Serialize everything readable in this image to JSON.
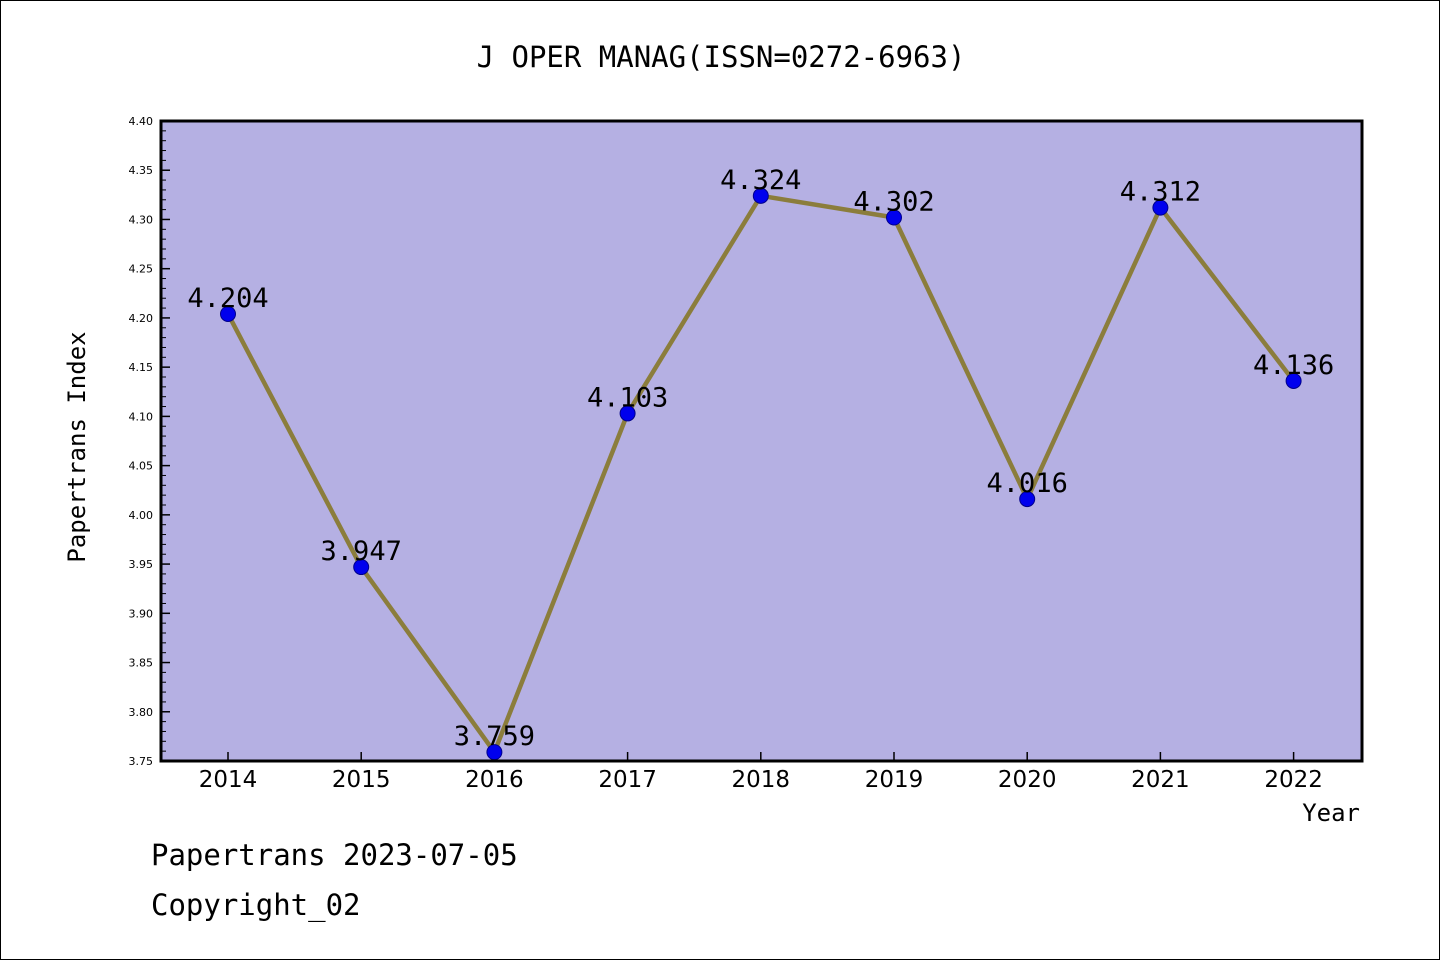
{
  "chart_data": {
    "type": "line",
    "title": "J OPER MANAG(ISSN=0272-6963)",
    "xlabel": "Year",
    "ylabel": "Papertrans Index",
    "categories": [
      "2014",
      "2015",
      "2016",
      "2017",
      "2018",
      "2019",
      "2020",
      "2021",
      "2022"
    ],
    "series": [
      {
        "values": [
          4.204,
          3.947,
          3.759,
          4.103,
          4.324,
          4.302,
          4.016,
          4.312,
          4.136
        ],
        "data_labels": [
          "4.204",
          "3.947",
          "3.759",
          "4.103",
          "4.324",
          "4.302",
          "4.016",
          "4.312",
          "4.136"
        ]
      }
    ],
    "ylim": [
      3.75,
      4.4
    ],
    "yticks": [
      "3.75",
      "3.80",
      "3.85",
      "3.90",
      "3.95",
      "4.00",
      "4.05",
      "4.10",
      "4.15",
      "4.20",
      "4.25",
      "4.30",
      "4.35",
      "4.40"
    ],
    "grid": false,
    "legend": "none",
    "colors": {
      "plot_background": "#b5b0e3",
      "line": "#8b7d3c",
      "marker": "#0000ee"
    }
  },
  "footer": {
    "date_line": "Papertrans 2023-07-05",
    "copyright": "Copyright_02"
  }
}
